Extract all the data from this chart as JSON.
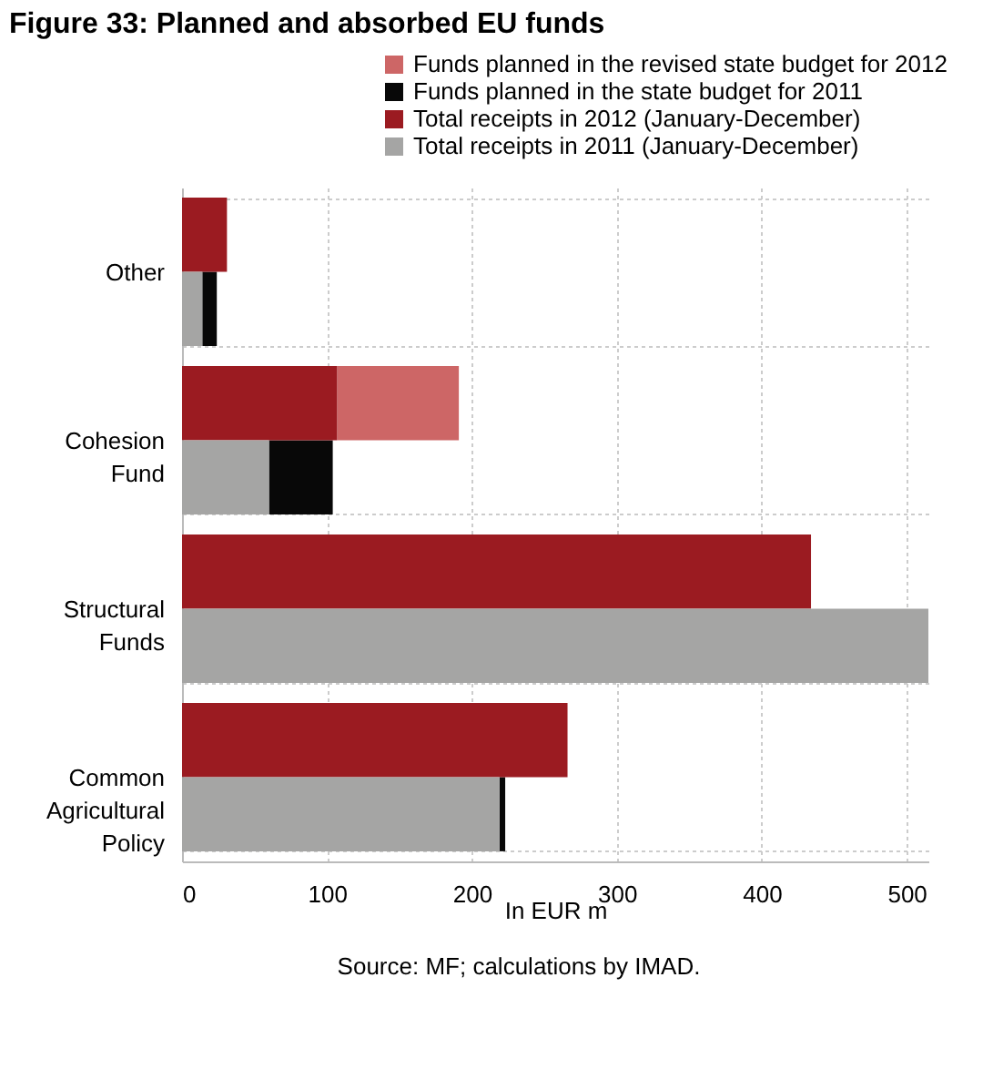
{
  "chart_data": {
    "type": "bar",
    "orientation": "horizontal",
    "title": "Figure 33: Planned and absorbed EU funds",
    "xlabel": "In EUR m",
    "annotations": [
      "Source: MF; calculations by IMAD."
    ],
    "categories": [
      "Other",
      "Cohesion Fund",
      "Structural Funds",
      "Common Agricultural Policy"
    ],
    "series": [
      {
        "name": "Funds planned in the revised state budget for 2012",
        "color": "#cd6666",
        "values": [
          null,
          84,
          null,
          null
        ],
        "base": [
          null,
          107,
          null,
          null
        ]
      },
      {
        "name": "Funds planned in the state budget for 2011",
        "color": "#080808",
        "values": [
          10,
          44,
          null,
          4
        ],
        "base": [
          14,
          60,
          null,
          219
        ]
      },
      {
        "name": "Total receipts in 2012 (January-December)",
        "color": "#9b1b21",
        "values": [
          31,
          107,
          434,
          266
        ]
      },
      {
        "name": "Total receipts in 2011 (January-December)",
        "color": "#a5a5a4",
        "values": [
          14,
          60,
          515,
          219
        ]
      }
    ],
    "xlim": [
      0,
      515
    ],
    "xticks": [
      0,
      100,
      200,
      300,
      400,
      500
    ],
    "grid": true,
    "legend": "top right"
  }
}
